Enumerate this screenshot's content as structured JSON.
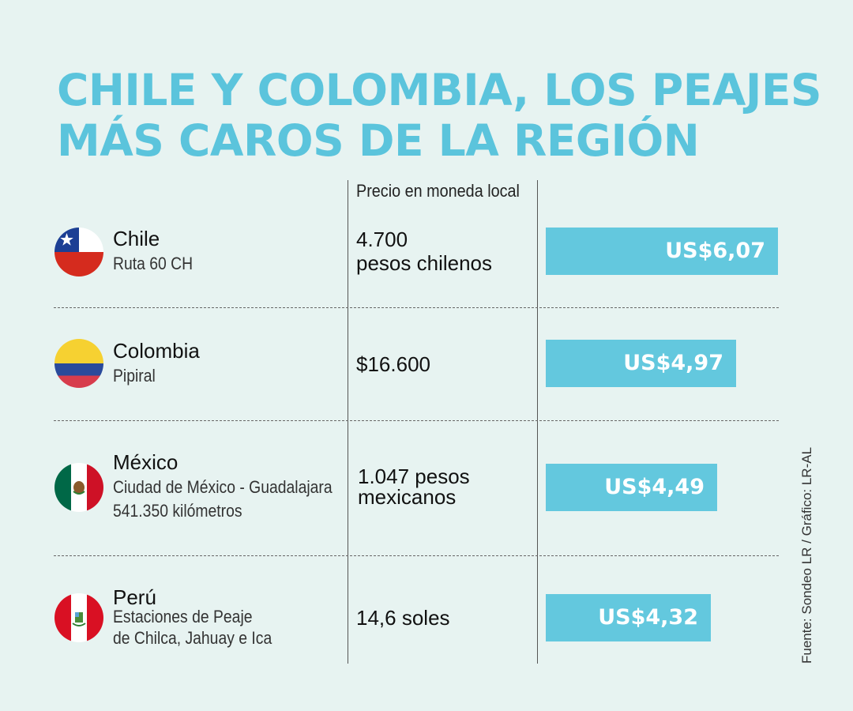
{
  "chart_data": {
    "type": "bar",
    "title_lines": [
      "CHILE Y COLOMBIA, LOS PEAJES",
      "MÁS CAROS DE LA REGIÓN"
    ],
    "column_header": "Precio en moneda local",
    "source": "Fuente: Sondeo LR / Gráfico: LR-AL",
    "bar_color": "#63c8de",
    "title_color": "#5bc4dc",
    "xlim": [
      0,
      6.07
    ],
    "rows": [
      {
        "country": "Chile",
        "place": [
          "Ruta 60 CH"
        ],
        "local_price": [
          "4.700",
          "pesos chilenos"
        ],
        "value": 6.07,
        "label": "US$6,07",
        "flag": "chile-flag-icon"
      },
      {
        "country": "Colombia",
        "place": [
          "Pipiral"
        ],
        "local_price": [
          "$16.600"
        ],
        "value": 4.97,
        "label": "US$4,97",
        "flag": "colombia-flag-icon"
      },
      {
        "country": "México",
        "place": [
          "Ciudad de México - Guadalajara",
          "541.350 kilómetros"
        ],
        "local_price": [
          "1.047 pesos",
          "mexicanos"
        ],
        "value": 4.49,
        "label": "US$4,49",
        "flag": "mexico-flag-icon"
      },
      {
        "country": "Perú",
        "place": [
          "Estaciones de Peaje",
          "de Chilca, Jahuay e Ica"
        ],
        "local_price": [
          "14,6 soles"
        ],
        "value": 4.32,
        "label": "US$4,32",
        "flag": "peru-flag-icon"
      }
    ]
  }
}
